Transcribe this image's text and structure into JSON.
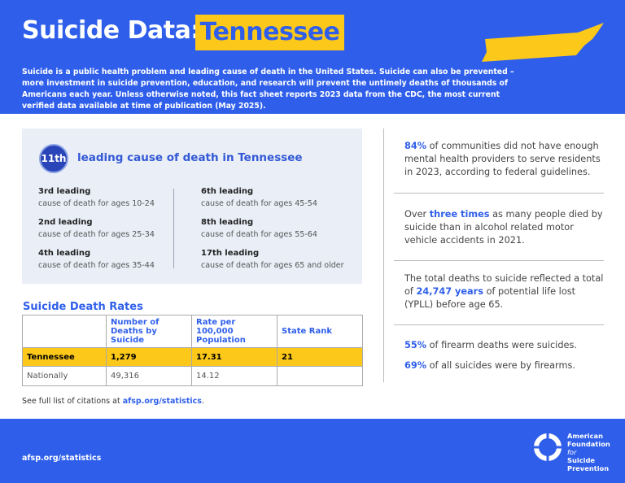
{
  "header": {
    "title_prefix": "Suicide Data:",
    "title_state": "Tennessee",
    "intro": "Suicide is a public health problem and leading cause of death in the United States. Suicide can also be prevented – more investment in suicide prevention, education, and research will prevent the untimely deaths of thousands of Americans each year. Unless otherwise noted, this fact sheet reports 2023 data from the CDC, the most current verified data available at time of publication (May 2025)."
  },
  "leading": {
    "rank": "11th",
    "headline": "leading cause of death in Tennessee",
    "items": [
      {
        "rank": "3rd leading",
        "desc": "cause of death for ages 10-24"
      },
      {
        "rank": "2nd leading",
        "desc": "cause of death for ages 25-34"
      },
      {
        "rank": "4th leading",
        "desc": "cause of death for ages 35-44"
      },
      {
        "rank": "6th leading",
        "desc": "cause of death for ages 45-54"
      },
      {
        "rank": "8th leading",
        "desc": "cause of death for ages 55-64"
      },
      {
        "rank": "17th leading",
        "desc": "cause of death for ages 65 and older"
      }
    ]
  },
  "rates": {
    "title": "Suicide Death Rates",
    "columns": [
      "Number of Deaths by Suicide",
      "Rate per 100,000 Population",
      "State Rank"
    ],
    "rows": [
      {
        "label": "Tennessee",
        "cells": [
          "1,279",
          "17.31",
          "21"
        ]
      },
      {
        "label": "Nationally",
        "cells": [
          "49,316",
          "14.12"
        ]
      }
    ]
  },
  "citation": {
    "text": "See full list of citations at",
    "link": "afsp.org/statistics",
    "end": "."
  },
  "stats": [
    {
      "highlight": "84%",
      "after": "of communities did not have enough mental health providers to serve residents in 2023, according to federal guidelines."
    },
    {
      "before": "Over",
      "highlight": "three times",
      "after": "as many people died by suicide than in alcohol related motor vehicle accidents in 2021."
    },
    {
      "before": "The total deaths to suicide reflected a total of",
      "highlight": "24,747 years",
      "after": "of potential life lost (YPLL) before age 65."
    },
    {
      "highlight": "55%",
      "after": "of firearm deaths were suicides."
    },
    {
      "highlight": "69%",
      "after": "of all suicides were by firearms."
    }
  ],
  "footer": {
    "url": "afsp.org/statistics",
    "org": [
      "American",
      "Foundation",
      "for",
      "Suicide",
      "Prevention"
    ]
  }
}
